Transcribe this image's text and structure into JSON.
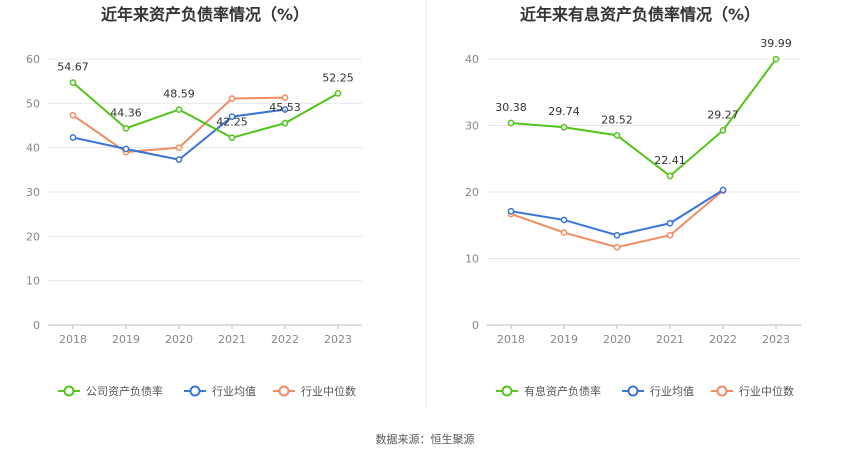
{
  "chart_data": [
    {
      "type": "line",
      "title": "近年来资产负债率情况（%）",
      "categories": [
        "2018",
        "2019",
        "2020",
        "2021",
        "2022",
        "2023"
      ],
      "ylim": [
        0,
        60
      ],
      "yticks": [
        0,
        10,
        20,
        30,
        40,
        50,
        60
      ],
      "series": [
        {
          "name": "公司资产负债率",
          "color": "#52c41a",
          "values": [
            54.67,
            44.36,
            48.59,
            42.25,
            45.53,
            52.25
          ],
          "labels": [
            "54.67",
            "44.36",
            "48.59",
            "42.25",
            "45.53",
            "52.25"
          ]
        },
        {
          "name": "行业均值",
          "color": "#3a75d8",
          "values": [
            42.3,
            39.7,
            37.3,
            47.0,
            48.6,
            null
          ]
        },
        {
          "name": "行业中位数",
          "color": "#f08c62",
          "values": [
            47.3,
            39.0,
            40.0,
            51.1,
            51.3,
            null
          ]
        }
      ],
      "legend_position": "bottom",
      "grid": true
    },
    {
      "type": "line",
      "title": "近年来有息资产负债率情况（%）",
      "categories": [
        "2018",
        "2019",
        "2020",
        "2021",
        "2022",
        "2023"
      ],
      "ylim": [
        0,
        40
      ],
      "yticks": [
        0,
        10,
        20,
        30,
        40
      ],
      "series": [
        {
          "name": "有息资产负债率",
          "color": "#52c41a",
          "values": [
            30.38,
            29.74,
            28.52,
            22.41,
            29.27,
            39.99
          ],
          "labels": [
            "30.38",
            "29.74",
            "28.52",
            "22.41",
            "29.27",
            "39.99"
          ]
        },
        {
          "name": "行业均值",
          "color": "#3a75d8",
          "values": [
            17.1,
            15.8,
            13.5,
            15.3,
            20.3,
            null
          ]
        },
        {
          "name": "行业中位数",
          "color": "#f08c62",
          "values": [
            16.7,
            13.9,
            11.7,
            13.5,
            20.2,
            null
          ]
        }
      ],
      "legend_position": "bottom",
      "grid": true
    }
  ],
  "footer": {
    "source": "数据来源：恒生聚源"
  }
}
